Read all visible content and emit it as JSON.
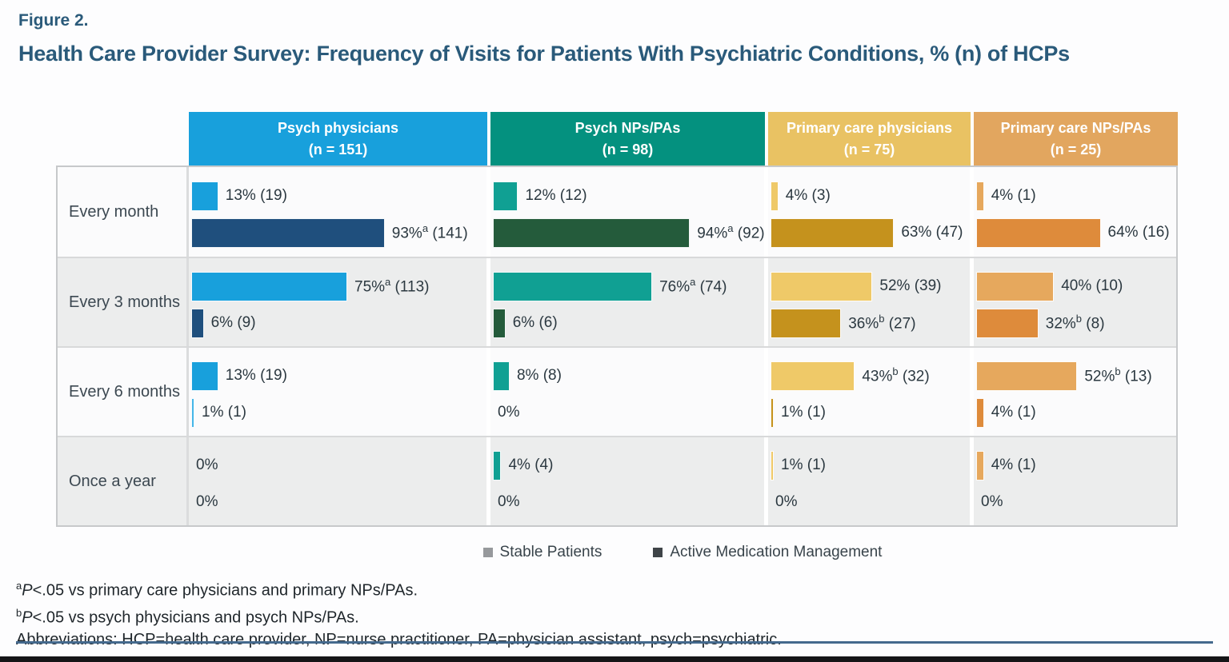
{
  "figure": {
    "label": "Figure 2.",
    "title": "Health Care Provider Survey: Frequency of Visits for Patients With Psychiatric Conditions, % (n) of HCPs"
  },
  "chart_data": {
    "type": "bar",
    "orientation": "horizontal",
    "unit": "% (n) of HCPs",
    "title": "Health Care Provider Survey: Frequency of Visits for Patients With Psychiatric Conditions, % (n) of HCPs",
    "categories": [
      "Every month",
      "Every 3 months",
      "Every 6 months",
      "Once a year"
    ],
    "series_names": [
      "Stable Patients",
      "Active Medication Management"
    ],
    "xlim": [
      0,
      100
    ],
    "grid": false,
    "groups": [
      {
        "name": "Psych physicians",
        "n_label": "(n = 151)",
        "header_color": "#18A0DC",
        "series": [
          {
            "name": "Stable Patients",
            "color": "#18A0DC",
            "pct": [
              13,
              75,
              13,
              0
            ],
            "n": [
              19,
              113,
              19,
              null
            ],
            "sup": [
              null,
              "a",
              null,
              null
            ]
          },
          {
            "name": "Active Medication Management",
            "color": "#1F4F7D",
            "pct": [
              93,
              6,
              1,
              0
            ],
            "n": [
              141,
              9,
              1,
              null
            ],
            "sup": [
              "a",
              null,
              null,
              null
            ],
            "color_overrides": [
              null,
              null,
              "#45B6E8",
              null
            ]
          }
        ]
      },
      {
        "name": "Psych NPs/PAs",
        "n_label": "(n = 98)",
        "header_color": "#04917F",
        "series": [
          {
            "name": "Stable Patients",
            "color": "#10A093",
            "pct": [
              12,
              76,
              8,
              4
            ],
            "n": [
              12,
              74,
              8,
              4
            ],
            "sup": [
              null,
              "a",
              null,
              null
            ]
          },
          {
            "name": "Active Medication Management",
            "color": "#245B3B",
            "pct": [
              94,
              6,
              0,
              0
            ],
            "n": [
              92,
              6,
              null,
              null
            ],
            "sup": [
              "a",
              null,
              null,
              null
            ]
          }
        ]
      },
      {
        "name": "Primary care physicians",
        "n_label": "(n = 75)",
        "header_color": "#E9C263",
        "series": [
          {
            "name": "Stable Patients",
            "color": "#EFC968",
            "pct": [
              4,
              52,
              43,
              1
            ],
            "n": [
              3,
              39,
              32,
              1
            ],
            "sup": [
              null,
              null,
              "b",
              null
            ]
          },
          {
            "name": "Active Medication Management",
            "color": "#C5921D",
            "pct": [
              63,
              36,
              1,
              0
            ],
            "n": [
              47,
              27,
              1,
              null
            ],
            "sup": [
              null,
              "b",
              null,
              null
            ]
          }
        ]
      },
      {
        "name": "Primary care NPs/PAs",
        "n_label": "(n = 25)",
        "header_color": "#E2A65F",
        "series": [
          {
            "name": "Stable Patients",
            "color": "#E6A85D",
            "pct": [
              4,
              40,
              52,
              4
            ],
            "n": [
              1,
              10,
              13,
              1
            ],
            "sup": [
              null,
              null,
              "b",
              null
            ]
          },
          {
            "name": "Active Medication Management",
            "color": "#DE8B3B",
            "pct": [
              64,
              32,
              4,
              0
            ],
            "n": [
              16,
              8,
              1,
              null
            ],
            "sup": [
              null,
              "b",
              null,
              null
            ]
          }
        ]
      }
    ],
    "legend": {
      "position": "bottom",
      "items": [
        {
          "label": "Stable Patients",
          "color": "#97999C"
        },
        {
          "label": "Active Medication Management",
          "color": "#3F4448"
        }
      ]
    }
  },
  "footnotes": [
    {
      "marker": "a",
      "p": "P",
      "text": "<.05 vs primary care physicians and primary NPs/PAs."
    },
    {
      "marker": "b",
      "p": "P",
      "text": "<.05 vs psych physicians and psych NPs/PAs."
    }
  ],
  "abbreviations": "Abbreviations: HCP=health care provider, NP=nurse practitioner, PA=physician assistant, psych=psychiatric."
}
